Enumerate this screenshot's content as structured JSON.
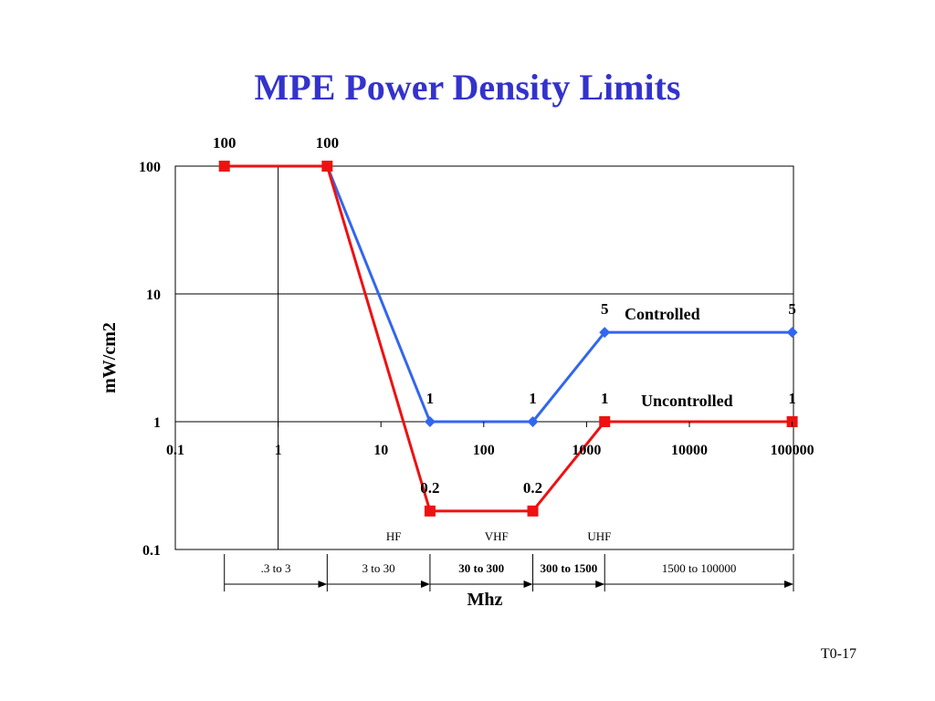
{
  "slide": {
    "title": "MPE Power Density Limits",
    "number": "T0-17"
  },
  "chart_data": {
    "type": "line",
    "title": "MPE Power Density Limits",
    "xlabel": "Mhz",
    "ylabel": "mW/cm2",
    "xscale": "log",
    "yscale": "log",
    "xlim": [
      0.1,
      100000
    ],
    "ylim": [
      0.1,
      100
    ],
    "x_ticks": [
      "0.1",
      "1",
      "10",
      "100",
      "1000",
      "10000",
      "100000"
    ],
    "y_ticks": [
      "0.1",
      "1",
      "10",
      "100"
    ],
    "grid": "major y gridlines and vertical line at x = 1",
    "colors": {
      "controlled": "#3366ee",
      "uncontrolled": "#ee1111",
      "title": "#3333cc"
    },
    "series": [
      {
        "name": "Controlled",
        "marker": "diamond",
        "color": "#3366ee",
        "points": [
          [
            0.3,
            100
          ],
          [
            3,
            100
          ],
          [
            30,
            1
          ],
          [
            300,
            1
          ],
          [
            1500,
            5
          ],
          [
            100000,
            5
          ]
        ],
        "labels": [
          "",
          "",
          "1",
          "1",
          "5",
          "5"
        ]
      },
      {
        "name": "Uncontrolled",
        "marker": "square",
        "color": "#ee1111",
        "points": [
          [
            0.3,
            100
          ],
          [
            3,
            100
          ],
          [
            30,
            0.2
          ],
          [
            300,
            0.2
          ],
          [
            1500,
            1
          ],
          [
            100000,
            1
          ]
        ],
        "labels": [
          "100",
          "100",
          "0.2",
          "0.2",
          "1",
          "1"
        ]
      }
    ],
    "bands": [
      {
        "label": "HF",
        "x": 10
      },
      {
        "label": "VHF",
        "x": 100
      },
      {
        "label": "UHF",
        "x": 1000
      }
    ],
    "ranges": [
      {
        "label": ".3 to 3",
        "from": 0.3,
        "to": 3,
        "bold": false
      },
      {
        "label": "3 to 30",
        "from": 3,
        "to": 30,
        "bold": false
      },
      {
        "label": "30 to 300",
        "from": 30,
        "to": 300,
        "bold": true
      },
      {
        "label": "300 to 1500",
        "from": 300,
        "to": 1500,
        "bold": true
      },
      {
        "label": "1500 to 100000",
        "from": 1500,
        "to": 100000,
        "bold": false
      }
    ]
  }
}
